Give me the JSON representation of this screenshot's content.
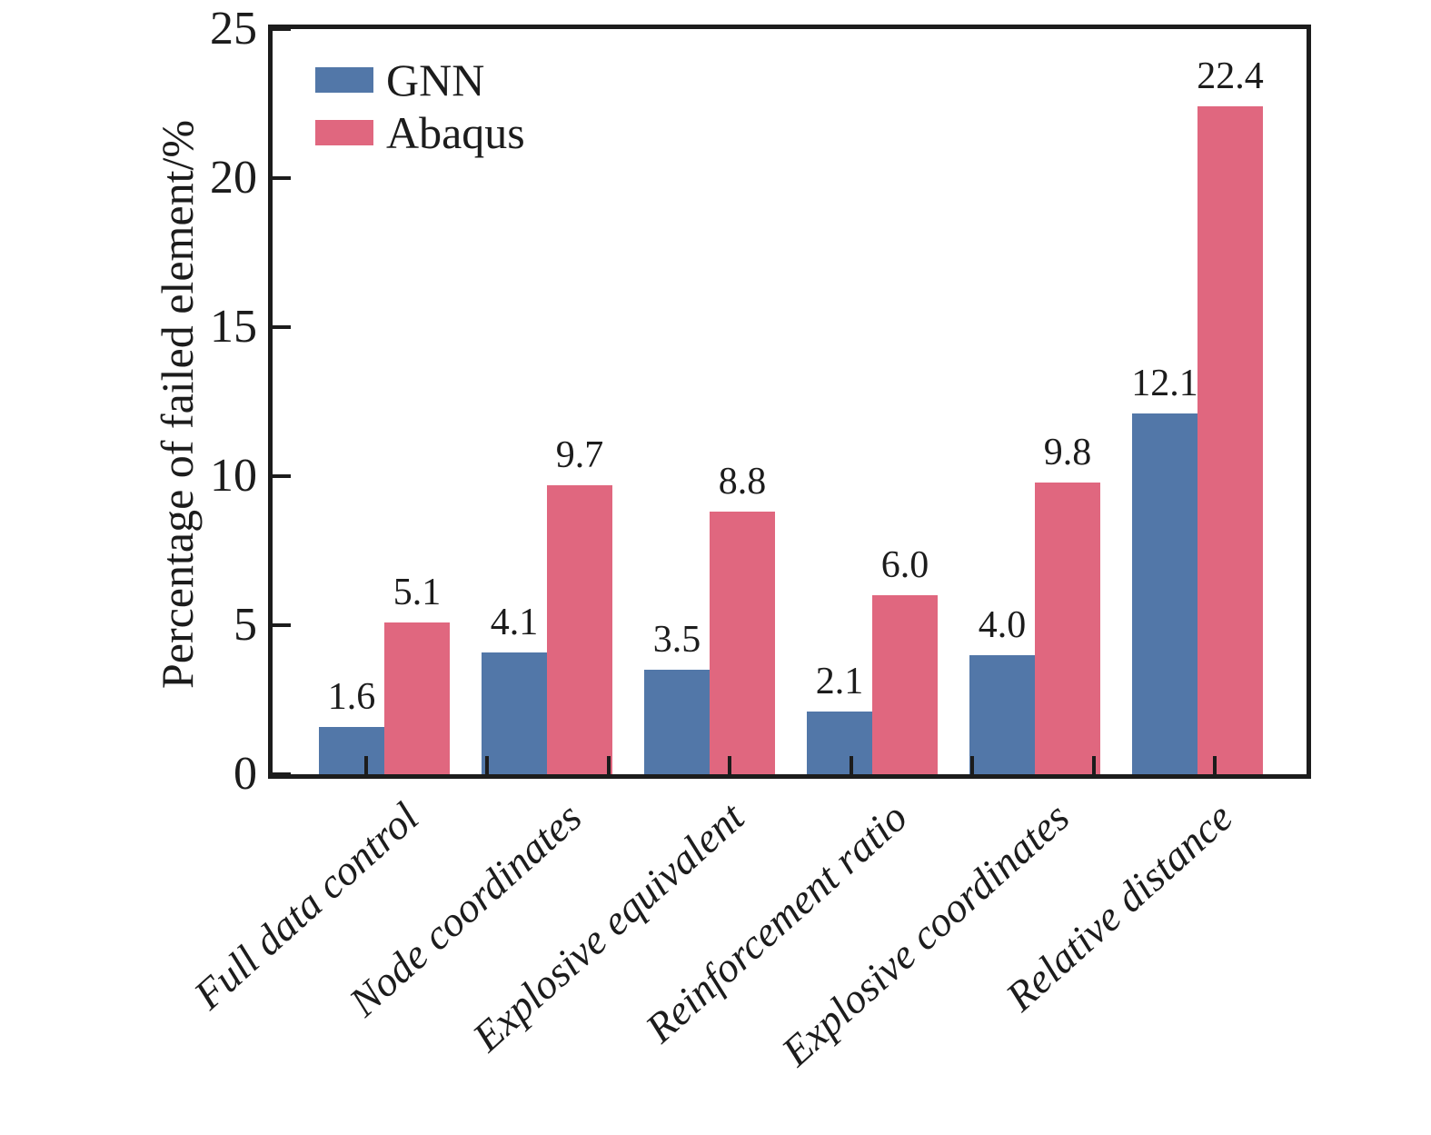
{
  "chart_data": {
    "type": "bar",
    "categories": [
      "Full data control",
      "Node coordinates",
      "Explosive equivalent",
      "Reinforcement ratio",
      "Explosive coordinates",
      "Relative distance"
    ],
    "series": [
      {
        "name": "GNN",
        "color": "#5277A8",
        "values": [
          1.6,
          4.1,
          3.5,
          2.1,
          4.0,
          12.1
        ]
      },
      {
        "name": "Abaqus",
        "color": "#E0677F",
        "values": [
          5.1,
          9.7,
          8.8,
          6.0,
          9.8,
          22.4
        ]
      }
    ],
    "value_label_decimals": 1,
    "ylabel": "Percentage of failed element/%",
    "ylim": [
      0,
      25
    ],
    "yticks": [
      0,
      5,
      10,
      15,
      20,
      25
    ],
    "x_minor_tick_count": 8,
    "legend_position": "upper-left",
    "grid": false,
    "axis_color": "#1c1c1c",
    "background_color": "#ffffff"
  }
}
